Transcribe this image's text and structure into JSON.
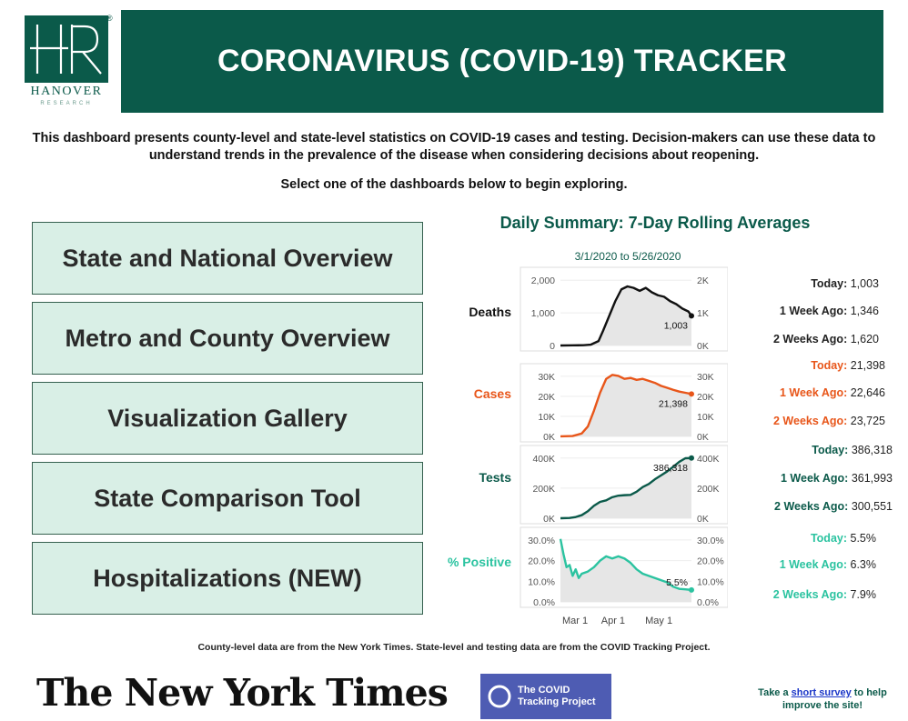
{
  "colors": {
    "brand": "#0b5a4a",
    "nav_bg": "#d9efe6",
    "deaths": "#111111",
    "cases": "#e8561a",
    "tests": "#0b5a4a",
    "positive": "#2bc3a0",
    "ctp": "#4e5cb3",
    "link": "#1a36c8"
  },
  "logo": {
    "name": "HANOVER",
    "sub": "RESEARCH",
    "registered": "®",
    "letters": "HR"
  },
  "header": {
    "title": "CORONAVIRUS (COVID-19) TRACKER"
  },
  "intro": {
    "text": "This dashboard presents county-level and state-level statistics on COVID-19 cases and testing. Decision-makers can use these data to understand trends in the prevalence of the disease when considering decisions about reopening.",
    "select": "Select one of the dashboards below to begin exploring."
  },
  "nav": [
    {
      "label": "State and National Overview"
    },
    {
      "label": "Metro and County Overview"
    },
    {
      "label": "Visualization Gallery"
    },
    {
      "label": "State Comparison Tool"
    },
    {
      "label": "Hospitalizations (NEW)"
    }
  ],
  "summary": {
    "title": "Daily Summary: 7-Day Rolling Averages",
    "date_range": "3/1/2020 to 5/26/2020",
    "rows": [
      {
        "label": "Deaths",
        "today_label": "Today:",
        "today": "1,003",
        "week_label": "1 Week Ago:",
        "week": "1,346",
        "two_week_label": "2 Weeks Ago:",
        "two_week": "1,620"
      },
      {
        "label": "Cases",
        "today_label": "Today:",
        "today": "21,398",
        "week_label": "1 Week Ago:",
        "week": "22,646",
        "two_week_label": "2 Weeks Ago:",
        "two_week": "23,725"
      },
      {
        "label": "Tests",
        "today_label": "Today:",
        "today": "386,318",
        "week_label": "1 Week Ago:",
        "week": "361,993",
        "two_week_label": "2 Weeks Ago:",
        "two_week": "300,551"
      },
      {
        "label": "% Positive",
        "today_label": "Today:",
        "today": "5.5%",
        "week_label": "1 Week  Ago:",
        "week": "6.3%",
        "two_week_label": "2 Weeks Ago:",
        "two_week": "7.9%"
      }
    ]
  },
  "chart_data": [
    {
      "type": "area",
      "name": "Deaths",
      "title": "Deaths",
      "x_ticks": [
        "Mar 1",
        "Apr 1",
        "May 1"
      ],
      "y_ticks_left": [
        "0",
        "1,000",
        "2,000"
      ],
      "y_ticks_right": [
        "0K",
        "1K",
        "2K"
      ],
      "ylim": [
        0,
        2400
      ],
      "end_label": "1,003",
      "x_days": [
        0,
        8,
        15,
        20,
        25,
        28,
        32,
        36,
        40,
        44,
        48,
        52,
        56,
        60,
        64,
        68,
        72,
        76,
        80,
        84,
        86
      ],
      "values": [
        0,
        5,
        10,
        30,
        150,
        500,
        1000,
        1500,
        1900,
        2000,
        1950,
        1850,
        1950,
        1800,
        1700,
        1650,
        1500,
        1400,
        1250,
        1150,
        1003
      ]
    },
    {
      "type": "area",
      "name": "Cases",
      "title": "Cases",
      "x_ticks": [
        "Mar 1",
        "Apr 1",
        "May 1"
      ],
      "y_ticks_left": [
        "0K",
        "10K",
        "20K",
        "30K"
      ],
      "y_ticks_right": [
        "0K",
        "10K",
        "20K",
        "30K"
      ],
      "ylim": [
        0,
        33000
      ],
      "end_label": "21,398",
      "x_days": [
        0,
        8,
        14,
        18,
        22,
        26,
        30,
        34,
        38,
        42,
        46,
        50,
        54,
        58,
        62,
        66,
        70,
        74,
        78,
        82,
        86
      ],
      "values": [
        20,
        200,
        1500,
        5000,
        13000,
        22000,
        29000,
        31000,
        30500,
        29000,
        29500,
        28500,
        29000,
        28000,
        27000,
        25500,
        24500,
        23500,
        22600,
        22000,
        21398
      ]
    },
    {
      "type": "area",
      "name": "Tests",
      "title": "Tests",
      "x_ticks": [
        "Mar 1",
        "Apr 1",
        "May 1"
      ],
      "y_ticks_left": [
        "0K",
        "200K",
        "400K"
      ],
      "y_ticks_right": [
        "0K",
        "200K",
        "400K"
      ],
      "ylim": [
        0,
        420000
      ],
      "end_label": "386,318",
      "x_days": [
        0,
        6,
        10,
        14,
        18,
        22,
        26,
        30,
        34,
        38,
        42,
        46,
        50,
        54,
        58,
        62,
        66,
        70,
        74,
        78,
        82,
        86
      ],
      "values": [
        0,
        2000,
        8000,
        20000,
        45000,
        80000,
        105000,
        115000,
        135000,
        145000,
        148000,
        150000,
        170000,
        200000,
        220000,
        250000,
        275000,
        300000,
        330000,
        362000,
        385000,
        386318
      ]
    },
    {
      "type": "area",
      "name": "% Positive",
      "title": "% Positive",
      "x_ticks": [
        "Mar 1",
        "Apr 1",
        "May 1"
      ],
      "y_ticks_left": [
        "0.0%",
        "10.0%",
        "20.0%",
        "30.0%"
      ],
      "y_ticks_right": [
        "0.0%",
        "10.0%",
        "20.0%",
        "30.0%"
      ],
      "ylim": [
        0,
        31
      ],
      "end_label": "5.5%",
      "x_days": [
        0,
        2,
        4,
        6,
        8,
        10,
        12,
        14,
        18,
        22,
        26,
        30,
        34,
        38,
        42,
        46,
        50,
        54,
        58,
        62,
        66,
        70,
        74,
        78,
        82,
        86
      ],
      "values": [
        29,
        22,
        16,
        17,
        12,
        15,
        11,
        13,
        14,
        16,
        19,
        21,
        20,
        21,
        20,
        18,
        15,
        13,
        12,
        11,
        10,
        9,
        7,
        6,
        5.8,
        5.5
      ]
    }
  ],
  "footnote": "County-level data are from the New York Times. State-level and testing data are from the COVID Tracking Project.",
  "nyt": "The New York Times",
  "ctp": {
    "line1": "The COVID",
    "line2": "Tracking Project"
  },
  "survey": {
    "pre": "Take a ",
    "link": "short survey",
    "post": " to help improve the site!"
  }
}
